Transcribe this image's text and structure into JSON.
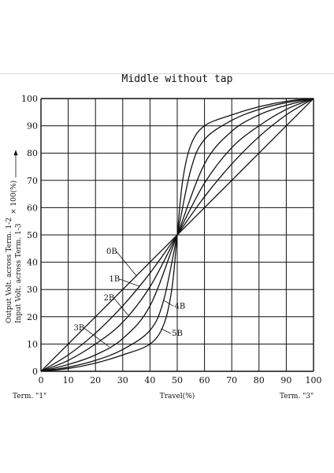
{
  "chart_data": {
    "type": "line",
    "title": "Middle without tap",
    "xlabel": "Travel(%)",
    "ylabel_line1": "Output Volt. across  Term. 1-2",
    "ylabel_line2": "Input Volt. across  Term. 1-3",
    "ylabel_factor": "× 100(%)",
    "x_left_label": "Term. \"1\"",
    "x_right_label": "Term. \"3\"",
    "xlim": [
      0,
      100
    ],
    "ylim": [
      0,
      100
    ],
    "xticks": [
      0,
      10,
      20,
      30,
      40,
      50,
      60,
      70,
      80,
      90,
      100
    ],
    "yticks": [
      0,
      10,
      20,
      30,
      40,
      50,
      60,
      70,
      80,
      90,
      100
    ],
    "grid": true,
    "series": [
      {
        "name": "0B",
        "x": [
          0,
          10,
          20,
          30,
          40,
          50,
          60,
          70,
          80,
          90,
          100
        ],
        "y": [
          0,
          10,
          20,
          30,
          40,
          50,
          60,
          70,
          80,
          90,
          100
        ]
      },
      {
        "name": "1B",
        "x": [
          0,
          10,
          20,
          30,
          40,
          50,
          60,
          70,
          80,
          90,
          100
        ],
        "y": [
          0,
          6,
          14,
          24,
          36,
          50,
          64,
          76,
          86,
          94,
          100
        ]
      },
      {
        "name": "2B",
        "x": [
          0,
          10,
          20,
          30,
          40,
          50,
          60,
          70,
          80,
          90,
          100
        ],
        "y": [
          0,
          4,
          10,
          18,
          31,
          50,
          69,
          82,
          90,
          96,
          100
        ]
      },
      {
        "name": "3B",
        "x": [
          0,
          10,
          20,
          30,
          40,
          50,
          60,
          70,
          80,
          90,
          100
        ],
        "y": [
          0,
          2.5,
          6,
          12,
          24,
          50,
          76,
          88,
          94,
          97.5,
          100
        ]
      },
      {
        "name": "4B",
        "x": [
          0,
          10,
          20,
          30,
          40,
          45,
          50,
          55,
          60,
          70,
          80,
          90,
          100
        ],
        "y": [
          0,
          1.5,
          4,
          8,
          15,
          26,
          50,
          74,
          85,
          92,
          96,
          98.5,
          100
        ]
      },
      {
        "name": "5B",
        "x": [
          0,
          10,
          20,
          30,
          40,
          45,
          48,
          50,
          52,
          55,
          60,
          70,
          80,
          90,
          100
        ],
        "y": [
          0,
          1,
          3,
          6,
          10,
          17,
          30,
          50,
          70,
          83,
          90,
          94,
          97,
          99,
          100
        ]
      }
    ],
    "curve_labels": [
      {
        "text": "0B",
        "series": "0B",
        "lx": 24,
        "ly": 43
      },
      {
        "text": "1B",
        "series": "1B",
        "lx": 25,
        "ly": 33
      },
      {
        "text": "2B",
        "series": "2B",
        "lx": 23,
        "ly": 26
      },
      {
        "text": "3B",
        "series": "3B",
        "lx": 12,
        "ly": 15
      },
      {
        "text": "4B",
        "series": "4B",
        "lx": 49,
        "ly": 23
      },
      {
        "text": "5B",
        "series": "5B",
        "lx": 48,
        "ly": 13
      }
    ]
  }
}
